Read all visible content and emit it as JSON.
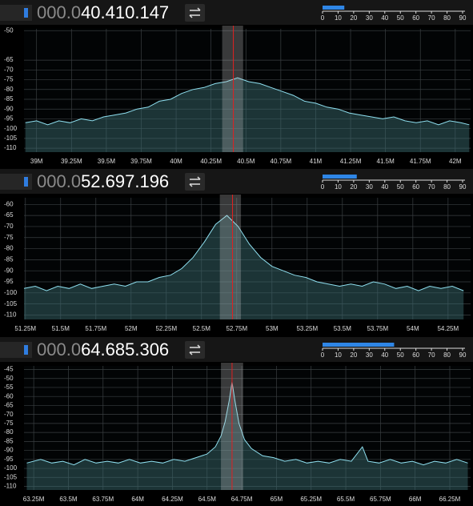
{
  "panels": [
    {
      "frequency_prefix": "000.0",
      "frequency": "40.410.147",
      "level_meter": {
        "ticks": [
          0,
          10,
          20,
          30,
          40,
          50,
          60,
          70,
          80,
          90
        ],
        "value": 14
      },
      "spectrum": {
        "type": "line",
        "color": "#8fe0f0",
        "grid": true,
        "xlim": [
          38.91,
          42.11
        ],
        "ylim": [
          -112,
          -49
        ],
        "xticks": [
          {
            "value": 39,
            "label": "39M"
          },
          {
            "value": 39.25,
            "label": "39.25M"
          },
          {
            "value": 39.5,
            "label": "39.5M"
          },
          {
            "value": 39.75,
            "label": "39.75M"
          },
          {
            "value": 40,
            "label": "40M"
          },
          {
            "value": 40.25,
            "label": "40.25M"
          },
          {
            "value": 40.5,
            "label": "40.5M"
          },
          {
            "value": 40.75,
            "label": "40.75M"
          },
          {
            "value": 41,
            "label": "41M"
          },
          {
            "value": 41.25,
            "label": "41.25M"
          },
          {
            "value": 41.5,
            "label": "41.5M"
          },
          {
            "value": 41.75,
            "label": "41.75M"
          },
          {
            "value": 42,
            "label": "42M"
          }
        ],
        "yticks": [
          -50,
          -65,
          -70,
          -75,
          -80,
          -85,
          -90,
          -95,
          -100,
          -105,
          -110
        ],
        "marker": 40.41,
        "band": [
          40.33,
          40.48
        ],
        "x": [
          38.92,
          39.0,
          39.08,
          39.16,
          39.24,
          39.32,
          39.4,
          39.48,
          39.56,
          39.64,
          39.72,
          39.8,
          39.88,
          39.96,
          40.04,
          40.12,
          40.2,
          40.28,
          40.36,
          40.44,
          40.52,
          40.6,
          40.68,
          40.76,
          40.84,
          40.92,
          41.0,
          41.08,
          41.16,
          41.24,
          41.32,
          41.4,
          41.48,
          41.56,
          41.64,
          41.72,
          41.8,
          41.88,
          41.96,
          42.04,
          42.1
        ],
        "values": [
          -97,
          -96,
          -98,
          -96,
          -97,
          -95,
          -96,
          -94,
          -93,
          -92,
          -90,
          -89,
          -86,
          -85,
          -82,
          -80,
          -79,
          -77,
          -76,
          -74,
          -76,
          -77,
          -79,
          -81,
          -83,
          -86,
          -87,
          -89,
          -90,
          -92,
          -93,
          -94,
          -95,
          -94,
          -96,
          -97,
          -96,
          -98,
          -96,
          -97,
          -98
        ]
      }
    },
    {
      "frequency_prefix": "000.0",
      "frequency": "52.697.196",
      "level_meter": {
        "ticks": [
          0,
          10,
          20,
          30,
          40,
          50,
          60,
          70,
          80,
          90
        ],
        "value": 22
      },
      "spectrum": {
        "type": "line",
        "color": "#8fe0f0",
        "grid": true,
        "xlim": [
          51.24,
          54.41
        ],
        "ylim": [
          -112,
          -57
        ],
        "xticks": [
          {
            "value": 51.25,
            "label": "51.25M"
          },
          {
            "value": 51.5,
            "label": "51.5M"
          },
          {
            "value": 51.75,
            "label": "51.75M"
          },
          {
            "value": 52,
            "label": "52M"
          },
          {
            "value": 52.25,
            "label": "52.25M"
          },
          {
            "value": 52.5,
            "label": "52.5M"
          },
          {
            "value": 52.75,
            "label": "52.75M"
          },
          {
            "value": 53,
            "label": "53M"
          },
          {
            "value": 53.25,
            "label": "53.25M"
          },
          {
            "value": 53.5,
            "label": "53.5M"
          },
          {
            "value": 53.75,
            "label": "53.75M"
          },
          {
            "value": 54,
            "label": "54M"
          },
          {
            "value": 54.25,
            "label": "54.25M"
          }
        ],
        "yticks": [
          -60,
          -65,
          -70,
          -75,
          -80,
          -85,
          -90,
          -95,
          -100,
          -105,
          -110
        ],
        "marker": 52.72,
        "band": [
          52.63,
          52.78
        ],
        "x": [
          51.24,
          51.32,
          51.4,
          51.48,
          51.56,
          51.64,
          51.72,
          51.8,
          51.88,
          51.96,
          52.04,
          52.12,
          52.2,
          52.28,
          52.36,
          52.44,
          52.52,
          52.6,
          52.68,
          52.76,
          52.84,
          52.92,
          53.0,
          53.08,
          53.16,
          53.24,
          53.32,
          53.4,
          53.48,
          53.56,
          53.64,
          53.72,
          53.8,
          53.88,
          53.96,
          54.04,
          54.12,
          54.2,
          54.28,
          54.36
        ],
        "values": [
          -98,
          -97,
          -99,
          -97,
          -98,
          -96,
          -98,
          -97,
          -96,
          -97,
          -95,
          -95,
          -93,
          -92,
          -89,
          -84,
          -77,
          -69,
          -65,
          -70,
          -78,
          -84,
          -88,
          -90,
          -92,
          -93,
          -95,
          -96,
          -97,
          -96,
          -97,
          -95,
          -96,
          -98,
          -97,
          -99,
          -97,
          -98,
          -97,
          -99
        ]
      }
    },
    {
      "frequency_prefix": "000.0",
      "frequency": "64.685.306",
      "level_meter": {
        "ticks": [
          0,
          10,
          20,
          30,
          40,
          50,
          60,
          70,
          80,
          90
        ],
        "value": 46
      },
      "spectrum": {
        "type": "line",
        "color": "#8fe0f0",
        "grid": true,
        "xlim": [
          63.18,
          66.4
        ],
        "ylim": [
          -112,
          -43
        ],
        "xticks": [
          {
            "value": 63.25,
            "label": "63.25M"
          },
          {
            "value": 63.5,
            "label": "63.5M"
          },
          {
            "value": 63.75,
            "label": "63.75M"
          },
          {
            "value": 64,
            "label": "64M"
          },
          {
            "value": 64.25,
            "label": "64.25M"
          },
          {
            "value": 64.5,
            "label": "64.5M"
          },
          {
            "value": 64.75,
            "label": "64.75M"
          },
          {
            "value": 65,
            "label": "65M"
          },
          {
            "value": 65.25,
            "label": "65.25M"
          },
          {
            "value": 65.5,
            "label": "65.5M"
          },
          {
            "value": 65.75,
            "label": "65.75M"
          },
          {
            "value": 66,
            "label": "66M"
          },
          {
            "value": 66.25,
            "label": "66.25M"
          }
        ],
        "yticks": [
          -45,
          -50,
          -55,
          -60,
          -65,
          -70,
          -75,
          -80,
          -85,
          -90,
          -95,
          -100,
          -105,
          -110
        ],
        "marker": 64.68,
        "band": [
          64.6,
          64.76
        ],
        "x": [
          63.2,
          63.3,
          63.38,
          63.46,
          63.54,
          63.62,
          63.7,
          63.78,
          63.86,
          63.94,
          64.02,
          64.1,
          64.18,
          64.26,
          64.34,
          64.42,
          64.5,
          64.56,
          64.6,
          64.63,
          64.66,
          64.68,
          64.7,
          64.73,
          64.77,
          64.82,
          64.9,
          64.98,
          65.06,
          65.14,
          65.22,
          65.3,
          65.38,
          65.46,
          65.54,
          65.62,
          65.66,
          65.74,
          65.82,
          65.9,
          65.98,
          66.06,
          66.14,
          66.22,
          66.3,
          66.38
        ],
        "values": [
          -97,
          -95,
          -97,
          -96,
          -98,
          -95,
          -97,
          -96,
          -97,
          -95,
          -97,
          -96,
          -97,
          -95,
          -96,
          -94,
          -92,
          -88,
          -82,
          -74,
          -62,
          -52,
          -62,
          -75,
          -84,
          -89,
          -93,
          -94,
          -96,
          -95,
          -97,
          -96,
          -97,
          -95,
          -96,
          -88,
          -96,
          -97,
          -95,
          -97,
          -96,
          -98,
          -96,
          -97,
          -95,
          -97
        ]
      }
    }
  ]
}
